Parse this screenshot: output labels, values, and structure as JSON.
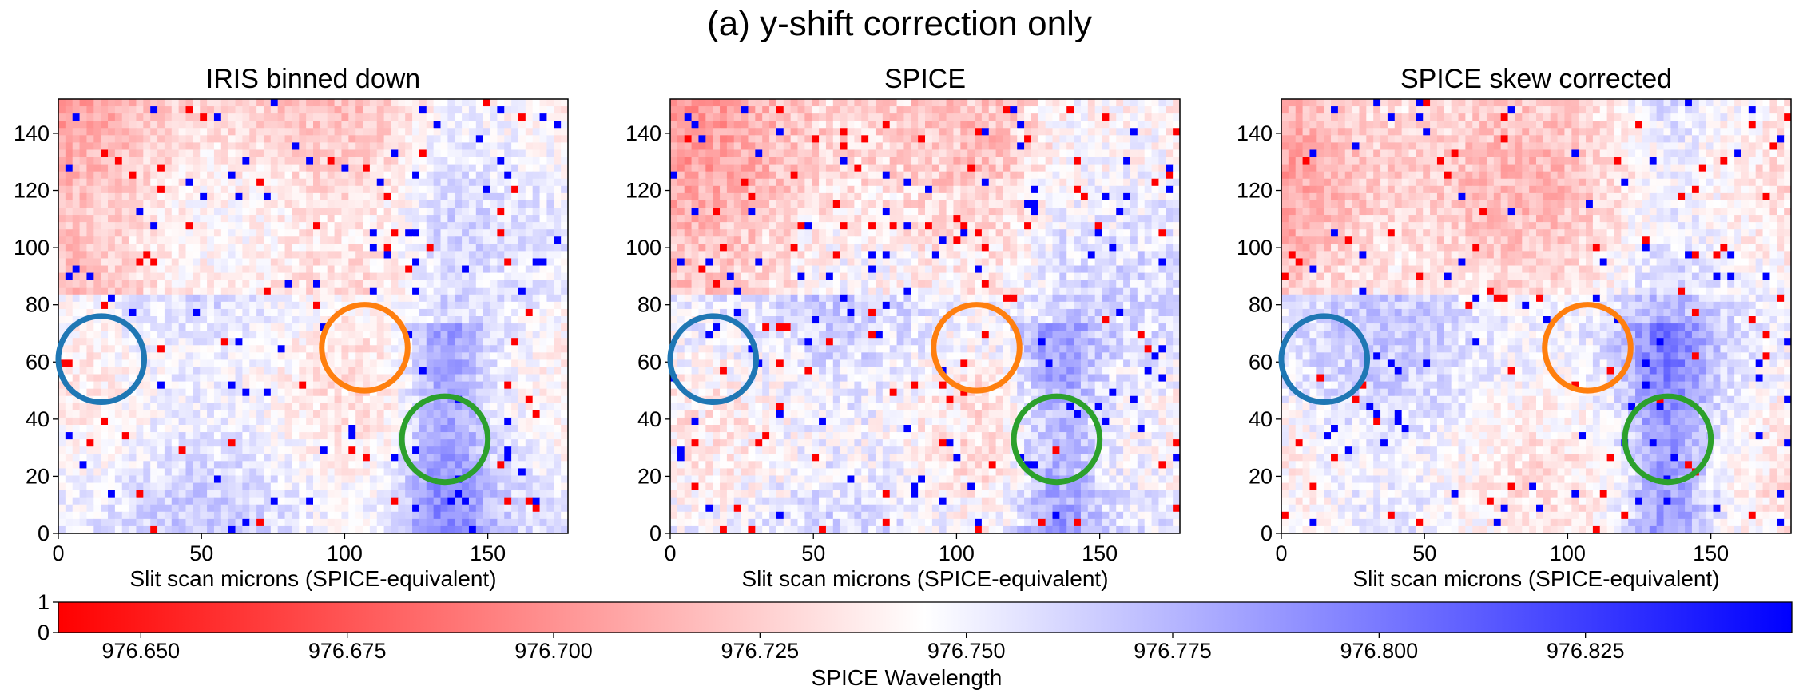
{
  "figure": {
    "title": "(a) y-shift correction only"
  },
  "chart_data": {
    "type": "heatmap",
    "panels": [
      {
        "title": "IRIS binned down",
        "xlabel": "Slit scan microns (SPICE-equivalent)",
        "ylabel": "",
        "xlim": [
          0,
          178
        ],
        "ylim": [
          0,
          152
        ],
        "xticks": [
          "0",
          "50",
          "100",
          "150"
        ],
        "yticks": [
          "0",
          "20",
          "40",
          "60",
          "80",
          "100",
          "120",
          "140"
        ],
        "pattern_seed": 11,
        "noise_level": 0.55,
        "circles": [
          {
            "name": "blue-circle",
            "color": "#1f77b4",
            "cx": 15,
            "cy": 61,
            "r": 15
          },
          {
            "name": "orange-circle",
            "color": "#ff7f0e",
            "cx": 107,
            "cy": 65,
            "r": 15
          },
          {
            "name": "green-circle",
            "color": "#2ca02c",
            "cx": 135,
            "cy": 33,
            "r": 15
          }
        ]
      },
      {
        "title": "SPICE",
        "xlabel": "Slit scan microns (SPICE-equivalent)",
        "ylabel": "",
        "xlim": [
          0,
          178
        ],
        "ylim": [
          0,
          152
        ],
        "xticks": [
          "0",
          "50",
          "100",
          "150"
        ],
        "yticks": [
          "0",
          "20",
          "40",
          "60",
          "80",
          "100",
          "120",
          "140"
        ],
        "pattern_seed": 23,
        "noise_level": 0.7,
        "circles": [
          {
            "name": "blue-circle",
            "color": "#1f77b4",
            "cx": 15,
            "cy": 61,
            "r": 15
          },
          {
            "name": "orange-circle",
            "color": "#ff7f0e",
            "cx": 107,
            "cy": 65,
            "r": 15
          },
          {
            "name": "green-circle",
            "color": "#2ca02c",
            "cx": 135,
            "cy": 33,
            "r": 15
          }
        ]
      },
      {
        "title": "SPICE skew corrected",
        "xlabel": "Slit scan microns (SPICE-equivalent)",
        "ylabel": "",
        "xlim": [
          0,
          178
        ],
        "ylim": [
          0,
          152
        ],
        "xticks": [
          "0",
          "50",
          "100",
          "150"
        ],
        "yticks": [
          "0",
          "20",
          "40",
          "60",
          "80",
          "100",
          "120",
          "140"
        ],
        "pattern_seed": 37,
        "noise_level": 0.6,
        "circles": [
          {
            "name": "blue-circle",
            "color": "#1f77b4",
            "cx": 15,
            "cy": 61,
            "r": 15
          },
          {
            "name": "orange-circle",
            "color": "#ff7f0e",
            "cx": 107,
            "cy": 65,
            "r": 15
          },
          {
            "name": "green-circle",
            "color": "#2ca02c",
            "cx": 135,
            "cy": 33,
            "r": 15
          }
        ]
      }
    ],
    "colorbar": {
      "label": "SPICE Wavelength",
      "cmap": "bwr_r",
      "min_color": "#ff0000",
      "mid_color": "#ffffff",
      "max_color": "#0000ff",
      "vmin": 976.64,
      "vmax": 976.85,
      "ticks": [
        "976.650",
        "976.675",
        "976.700",
        "976.725",
        "976.750",
        "976.775",
        "976.800",
        "976.825"
      ],
      "yticks": [
        "0",
        "1"
      ]
    }
  }
}
